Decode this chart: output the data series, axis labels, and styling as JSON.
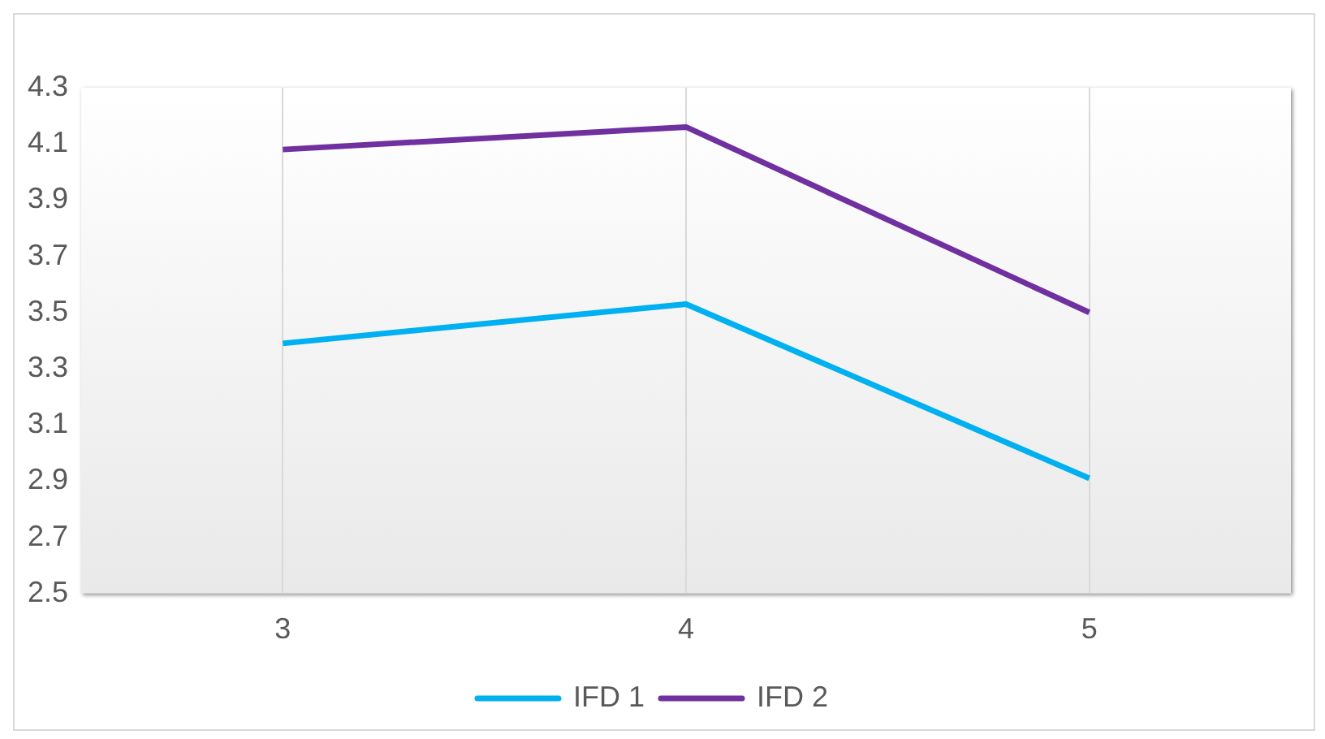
{
  "chart_data": {
    "type": "line",
    "categories": [
      "3",
      "4",
      "5"
    ],
    "series": [
      {
        "name": "IFD 1",
        "color": "#00b0f0",
        "values": [
          3.39,
          3.53,
          2.91
        ]
      },
      {
        "name": "IFD 2",
        "color": "#7030a0",
        "values": [
          4.08,
          4.16,
          3.5
        ]
      }
    ],
    "ylim": [
      2.5,
      4.3
    ],
    "yticks": [
      2.5,
      2.7,
      2.9,
      3.1,
      3.3,
      3.5,
      3.7,
      3.9,
      4.1,
      4.3
    ],
    "grid": "x",
    "legend": "bottom",
    "marker": "none",
    "line_style": "solid"
  }
}
